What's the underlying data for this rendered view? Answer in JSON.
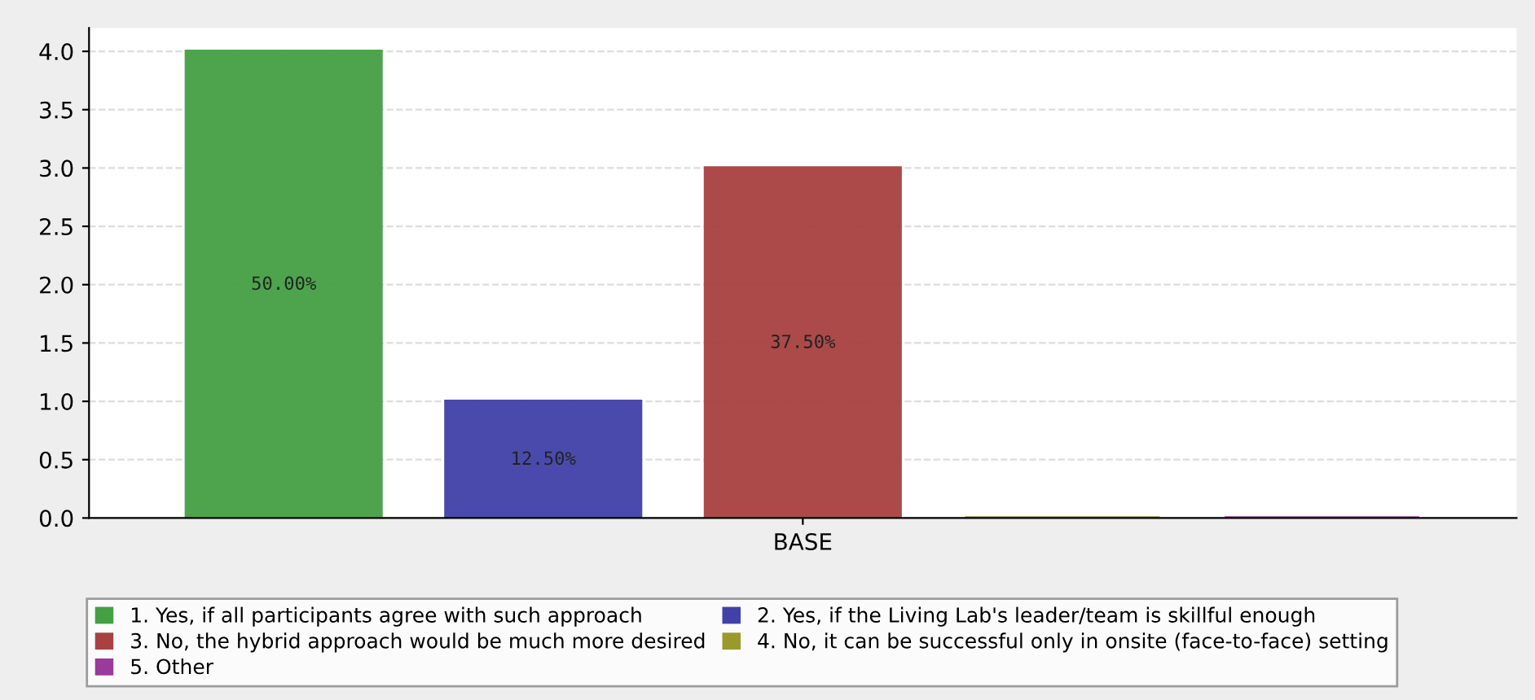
{
  "chart_data": {
    "type": "bar",
    "categories": [
      "BASE"
    ],
    "series": [
      {
        "name": "1. Yes, if all participants agree with such approach",
        "color": "#44a044",
        "values": [
          4
        ]
      },
      {
        "name": "2. Yes, if the Living Lab's leader/team is skillful enough",
        "color": "#4141a8",
        "values": [
          1
        ]
      },
      {
        "name": "3. No, the hybrid approach would be much more desired",
        "color": "#a84141",
        "values": [
          3
        ]
      },
      {
        "name": "4. No, it can be successful only in onsite (face-to-face) setting",
        "color": "#9a9a2c",
        "values": [
          0
        ]
      },
      {
        "name": "5. Other",
        "color": "#9a3a9a",
        "values": [
          0
        ]
      }
    ],
    "annotations": [
      "50.00%",
      "12.50%",
      "37.50%"
    ],
    "ylim": [
      0,
      4.2
    ],
    "yticks": [
      {
        "value": 0,
        "label": "0.0"
      },
      {
        "value": 0.5,
        "label": "0.5"
      },
      {
        "value": 1,
        "label": "1.0"
      },
      {
        "value": 1.5,
        "label": "1.5"
      },
      {
        "value": 2,
        "label": "2.0"
      },
      {
        "value": 2.5,
        "label": "2.5"
      },
      {
        "value": 3,
        "label": "3.0"
      },
      {
        "value": 3.5,
        "label": "3.5"
      },
      {
        "value": 4,
        "label": "4.0"
      }
    ],
    "grid": "y",
    "legend": "bottom"
  }
}
